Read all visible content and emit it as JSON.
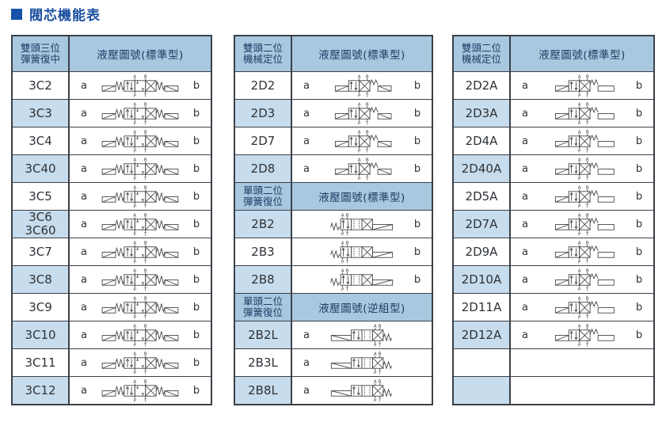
{
  "title": {
    "text": "閥芯機能表"
  },
  "colors": {
    "accent_blue": "#1a4fa0",
    "bullet_blue": "#1553a8",
    "header_bg": "#a8c8e0",
    "stripe_bg": "#c7dcec",
    "border": "#3b4048"
  },
  "diagram_ports": {
    "a": "A",
    "b": "B",
    "p": "P",
    "t": "T"
  },
  "tables": [
    {
      "id": "three-position-spring-centered",
      "sections": [
        {
          "variant": "main",
          "header": {
            "left_line1": "雙頭三位",
            "left_line2": "彈簧復中",
            "right": "液壓圖號(標準型)"
          },
          "rows": [
            {
              "label": "3C2",
              "a": "a",
              "b": "b",
              "diagram": "3C",
              "shaded": false
            },
            {
              "label": "3C3",
              "a": "a",
              "b": "b",
              "diagram": "3C",
              "shaded": true
            },
            {
              "label": "3C4",
              "a": "a",
              "b": "b",
              "diagram": "3C",
              "shaded": false
            },
            {
              "label": "3C40",
              "a": "a",
              "b": "b",
              "diagram": "3C",
              "shaded": true
            },
            {
              "label": "3C5",
              "a": "a",
              "b": "b",
              "diagram": "3C",
              "shaded": false
            },
            {
              "label": "3C6",
              "label2": "3C60",
              "a": "a",
              "b": "b",
              "diagram": "3C",
              "shaded": true
            },
            {
              "label": "3C7",
              "a": "a",
              "b": "b",
              "diagram": "3C",
              "shaded": false
            },
            {
              "label": "3C8",
              "a": "a",
              "b": "b",
              "diagram": "3C",
              "shaded": true
            },
            {
              "label": "3C9",
              "a": "a",
              "b": "b",
              "diagram": "3C",
              "shaded": false
            },
            {
              "label": "3C10",
              "a": "a",
              "b": "b",
              "diagram": "3C",
              "shaded": true
            },
            {
              "label": "3C11",
              "a": "a",
              "b": "b",
              "diagram": "3C",
              "shaded": false
            },
            {
              "label": "3C12",
              "a": "a",
              "b": "b",
              "diagram": "3C",
              "shaded": true
            }
          ]
        }
      ]
    },
    {
      "id": "two-position",
      "sections": [
        {
          "variant": "main",
          "header": {
            "left_line1": "雙頭二位",
            "left_line2": "機械定位",
            "right": "液壓圖號(標準型)"
          },
          "rows": [
            {
              "label": "2D2",
              "a": "a",
              "b": "b",
              "diagram": "2D",
              "shaded": false
            },
            {
              "label": "2D3",
              "a": "a",
              "b": "b",
              "diagram": "2D",
              "shaded": true
            },
            {
              "label": "2D7",
              "a": "a",
              "b": "b",
              "diagram": "2D",
              "shaded": false
            },
            {
              "label": "2D8",
              "a": "a",
              "b": "b",
              "diagram": "2D",
              "shaded": true
            }
          ]
        },
        {
          "variant": "sub",
          "header": {
            "left_line1": "單頭二位",
            "left_line2": "彈簧復位",
            "right": "液壓圖號(標準型)"
          },
          "rows": [
            {
              "label": "2B2",
              "a": "",
              "b": "b",
              "diagram": "2B",
              "shaded": true
            },
            {
              "label": "2B3",
              "a": "",
              "b": "b",
              "diagram": "2B",
              "shaded": false
            },
            {
              "label": "2B8",
              "a": "",
              "b": "b",
              "diagram": "2B",
              "shaded": true
            }
          ]
        },
        {
          "variant": "sub",
          "header": {
            "left_line1": "單頭二位",
            "left_line2": "彈簧復位",
            "right": "液壓圖號(逆組型)"
          },
          "rows": [
            {
              "label": "2B2L",
              "a": "a",
              "b": "",
              "diagram": "2BL",
              "shaded": true
            },
            {
              "label": "2B3L",
              "a": "a",
              "b": "",
              "diagram": "2BL",
              "shaded": false
            },
            {
              "label": "2B8L",
              "a": "a",
              "b": "",
              "diagram": "2BL",
              "shaded": true
            }
          ]
        }
      ]
    },
    {
      "id": "two-position-a-series",
      "sections": [
        {
          "variant": "main",
          "header": {
            "left_line1": "雙頭二位",
            "left_line2": "機械定位",
            "right": "液壓圖號(標準型)"
          },
          "rows": [
            {
              "label": "2D2A",
              "a": "a",
              "b": "b",
              "diagram": "2DA",
              "shaded": false
            },
            {
              "label": "2D3A",
              "a": "a",
              "b": "b",
              "diagram": "2DA",
              "shaded": true
            },
            {
              "label": "2D4A",
              "a": "a",
              "b": "b",
              "diagram": "2DA",
              "shaded": false
            },
            {
              "label": "2D40A",
              "a": "a",
              "b": "b",
              "diagram": "2DA",
              "shaded": true
            },
            {
              "label": "2D5A",
              "a": "a",
              "b": "b",
              "diagram": "2DA",
              "shaded": false
            },
            {
              "label": "2D7A",
              "a": "a",
              "b": "b",
              "diagram": "2DA",
              "shaded": true
            },
            {
              "label": "2D9A",
              "a": "a",
              "b": "b",
              "diagram": "2DA",
              "shaded": false
            },
            {
              "label": "2D10A",
              "a": "a",
              "b": "b",
              "diagram": "2DA",
              "shaded": true
            },
            {
              "label": "2D11A",
              "a": "a",
              "b": "b",
              "diagram": "2DA",
              "shaded": false
            },
            {
              "label": "2D12A",
              "a": "a",
              "b": "b",
              "diagram": "2DA",
              "shaded": true
            },
            {
              "label": "",
              "a": "",
              "b": "",
              "diagram": null,
              "shaded": false
            },
            {
              "label": "",
              "a": "",
              "b": "",
              "diagram": null,
              "shaded": true
            }
          ]
        }
      ]
    }
  ]
}
